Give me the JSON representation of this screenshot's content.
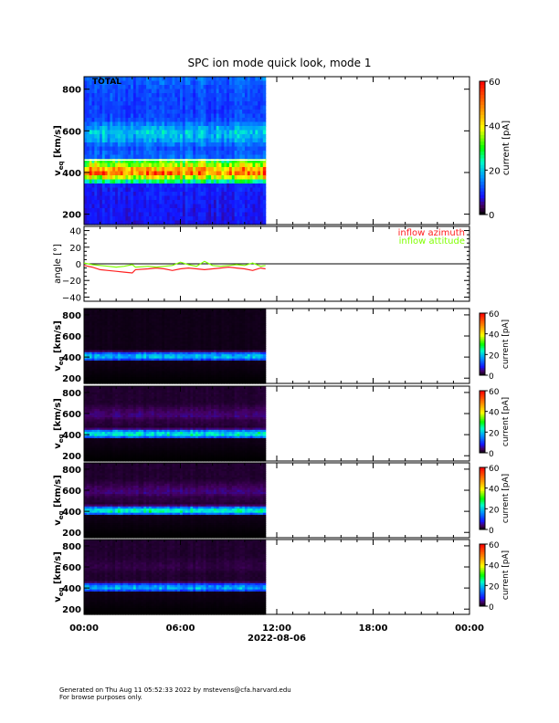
{
  "chart_data": {
    "type": "heatmap",
    "title": "SPC ion mode quick look, mode 1",
    "x_ticks": [
      "00:00",
      "06:00",
      "12:00",
      "18:00",
      "00:00"
    ],
    "x_label": "2022-08-06",
    "x_range_hours": [
      0,
      24
    ],
    "data_end_hour": 11.3,
    "colorbar": {
      "label": "current [pA]",
      "range": [
        0,
        60
      ],
      "ticks": [
        "0",
        "20",
        "40",
        "60"
      ]
    },
    "velocity_ylabel": "v",
    "velocity_ylabel_sub": "eq",
    "velocity_ylabel_unit": "[km/s]",
    "velocity_ticks": [
      "200",
      "400",
      "600",
      "800"
    ],
    "velocity_range": [
      150,
      860
    ],
    "panels": [
      {
        "name": "TOTAL",
        "profile": [
          [
            150,
            8
          ],
          [
            340,
            9
          ],
          [
            360,
            28
          ],
          [
            380,
            40
          ],
          [
            400,
            52
          ],
          [
            420,
            44
          ],
          [
            440,
            34
          ],
          [
            460,
            30
          ],
          [
            470,
            14
          ],
          [
            520,
            12
          ],
          [
            560,
            18
          ],
          [
            600,
            20
          ],
          [
            650,
            12
          ],
          [
            700,
            11
          ],
          [
            800,
            12
          ],
          [
            860,
            14
          ]
        ]
      },
      {
        "name": "",
        "profile": [
          [
            150,
            0
          ],
          [
            360,
            1
          ],
          [
            380,
            14
          ],
          [
            400,
            20
          ],
          [
            420,
            18
          ],
          [
            440,
            12
          ],
          [
            460,
            1
          ],
          [
            860,
            1
          ]
        ]
      },
      {
        "name": "",
        "profile": [
          [
            150,
            0
          ],
          [
            360,
            1
          ],
          [
            380,
            16
          ],
          [
            400,
            24
          ],
          [
            420,
            22
          ],
          [
            440,
            14
          ],
          [
            460,
            2
          ],
          [
            540,
            3
          ],
          [
            580,
            5
          ],
          [
            620,
            4
          ],
          [
            700,
            2
          ],
          [
            860,
            2
          ]
        ]
      },
      {
        "name": "",
        "profile": [
          [
            150,
            0
          ],
          [
            360,
            1
          ],
          [
            380,
            16
          ],
          [
            400,
            25
          ],
          [
            420,
            22
          ],
          [
            440,
            13
          ],
          [
            460,
            2
          ],
          [
            540,
            3
          ],
          [
            580,
            5
          ],
          [
            620,
            4
          ],
          [
            700,
            2
          ],
          [
            860,
            2
          ]
        ]
      },
      {
        "name": "",
        "profile": [
          [
            150,
            0
          ],
          [
            360,
            1
          ],
          [
            380,
            14
          ],
          [
            400,
            19
          ],
          [
            420,
            16
          ],
          [
            440,
            10
          ],
          [
            460,
            2
          ],
          [
            540,
            2
          ],
          [
            600,
            3
          ],
          [
            700,
            2
          ],
          [
            860,
            2
          ]
        ]
      }
    ],
    "angle_panel": {
      "ylabel": "angle [°]",
      "y_ticks": [
        "40",
        "20",
        "0",
        "−20",
        "−40"
      ],
      "y_range": [
        -45,
        45
      ],
      "series": [
        {
          "name": "inflow azimuth",
          "color": "#ff2020",
          "x": [
            0,
            0.5,
            1,
            1.5,
            2,
            2.5,
            3,
            3.2,
            4,
            4.5,
            5,
            5.5,
            6,
            6.5,
            7,
            7.5,
            8,
            8.5,
            9,
            9.5,
            10,
            10.5,
            11,
            11.3
          ],
          "y": [
            -2,
            -4,
            -7,
            -8,
            -9,
            -10,
            -11,
            -7,
            -6,
            -5,
            -6,
            -8,
            -6,
            -5,
            -6,
            -7,
            -6,
            -5,
            -4,
            -5,
            -6,
            -8,
            -5,
            -6
          ]
        },
        {
          "name": "inflow attitude",
          "color": "#80ff00",
          "x": [
            0,
            0.5,
            1,
            1.5,
            2,
            2.5,
            3,
            3.2,
            4,
            4.5,
            5,
            5.5,
            6,
            6.5,
            7,
            7.5,
            8,
            8.5,
            9,
            9.5,
            10,
            10.5,
            11,
            11.3
          ],
          "y": [
            1,
            -1,
            -2,
            -3,
            -4,
            -3,
            -1,
            -4,
            -3,
            -4,
            -3,
            -2,
            2,
            -1,
            -3,
            3,
            -2,
            -3,
            -2,
            -1,
            -2,
            1,
            -3,
            -2
          ]
        }
      ]
    }
  },
  "footer": {
    "line1": "Generated on Thu Aug 11 05:52:33 2022 by mstevens@cfa.harvard.edu",
    "line2": "For browse purposes only."
  }
}
